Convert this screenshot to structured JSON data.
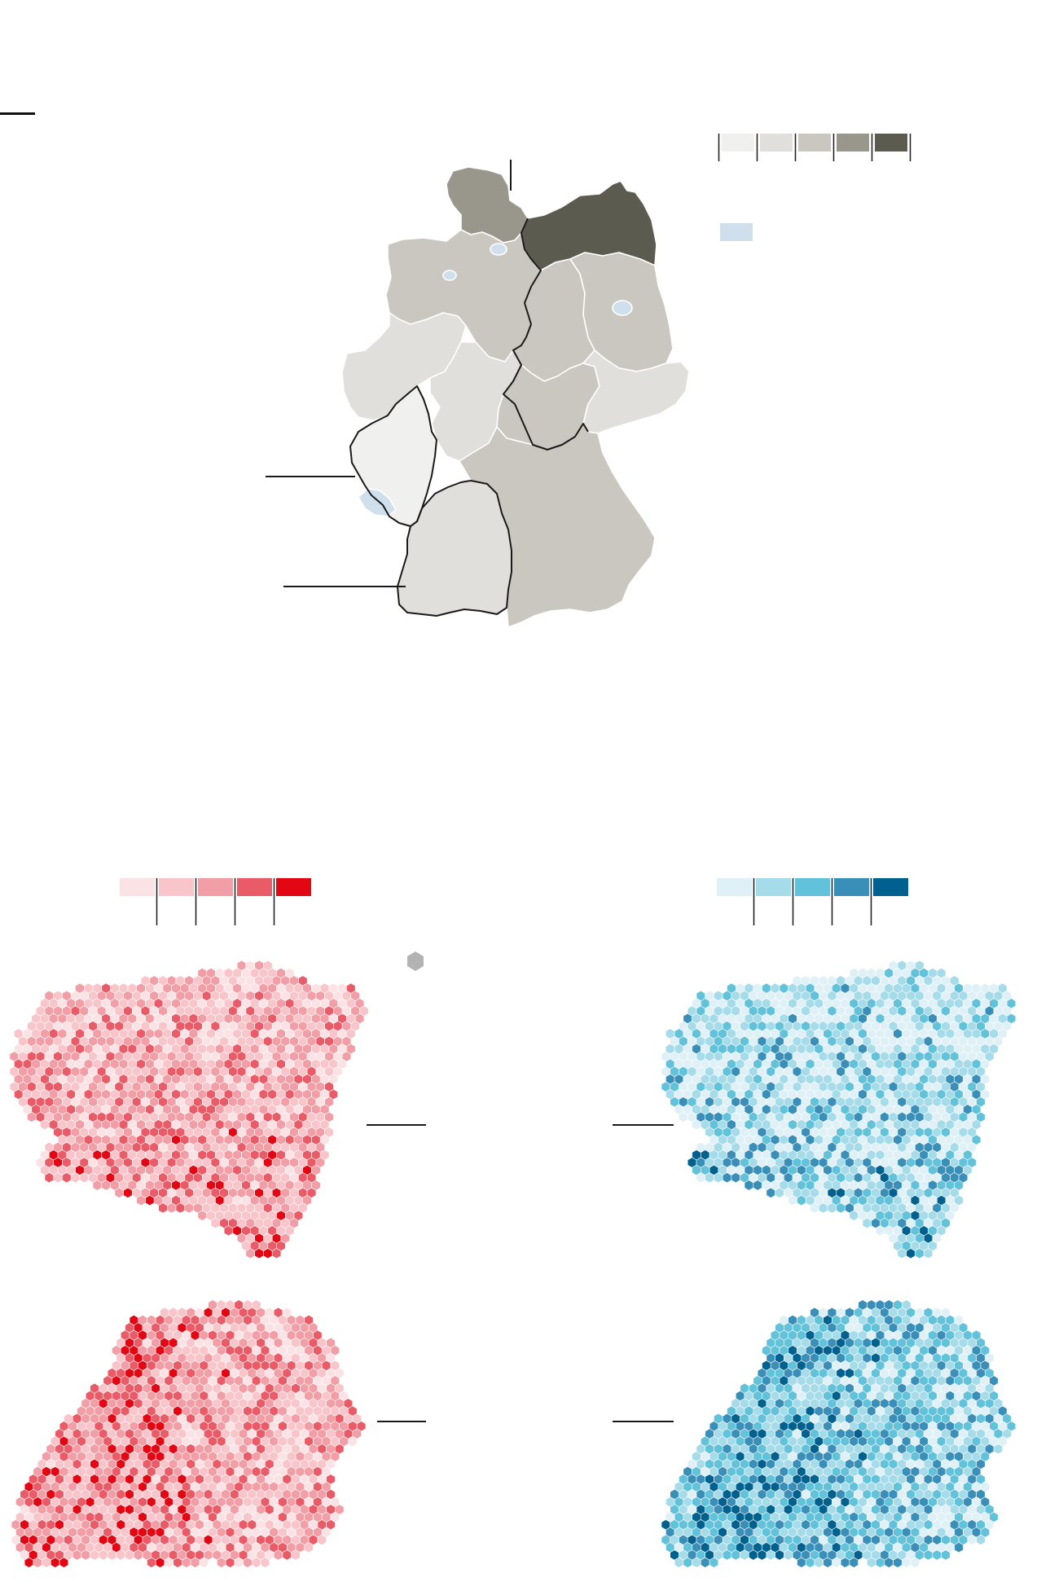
{
  "colors": {
    "background": "#ffffff",
    "state_borders": "#ffffff",
    "highlight_outline": "#1a1a1a",
    "city_state_fill": "#cfe0ec",
    "hex_marker": "#b3b3b3"
  },
  "germany_map": {
    "legend_scale": [
      "#f0f0ee",
      "#e0dfdb",
      "#c9c7c0",
      "#99978b",
      "#5c5b4f"
    ],
    "city_state_swatch": "#cfe0ec",
    "highlighted_states": [
      "rhineland-palatinate",
      "baden-wuerttemberg"
    ],
    "states": [
      {
        "id": "schleswig-holstein",
        "fill": "#99978b"
      },
      {
        "id": "mecklenburg-vorpommern",
        "fill": "#5c5b4f"
      },
      {
        "id": "lower-saxony",
        "fill": "#c9c7c0"
      },
      {
        "id": "saxony-anhalt",
        "fill": "#c9c7c0"
      },
      {
        "id": "brandenburg",
        "fill": "#c9c7c0"
      },
      {
        "id": "north-rhine-westphalia",
        "fill": "#e0dfdb"
      },
      {
        "id": "hesse",
        "fill": "#e0dfdb"
      },
      {
        "id": "thuringia",
        "fill": "#c9c7c0"
      },
      {
        "id": "saxony",
        "fill": "#e0dfdb"
      },
      {
        "id": "rhineland-palatinate",
        "fill": "#f0f0ee"
      },
      {
        "id": "saarland",
        "fill": "#cfe0ec"
      },
      {
        "id": "baden-wuerttemberg",
        "fill": "#e0dfdb"
      },
      {
        "id": "bavaria",
        "fill": "#c9c7c0"
      },
      {
        "id": "hamburg",
        "fill": "#cfe0ec"
      },
      {
        "id": "bremen",
        "fill": "#cfe0ec"
      },
      {
        "id": "berlin",
        "fill": "#cfe0ec"
      }
    ]
  },
  "hex_maps": {
    "red_scale": [
      "#fbe3e5",
      "#f8c5ca",
      "#f29ea6",
      "#ea5b68",
      "#e30613"
    ],
    "blue_scale": [
      "#dff1f6",
      "#a6dce9",
      "#62c2da",
      "#3a8fb9",
      "#00618f"
    ],
    "panels": [
      {
        "id": "rhineland-palatinate-red",
        "region": "rhineland-palatinate",
        "scale": "red",
        "weights": [
          0.22,
          0.24,
          0.24,
          0.18,
          0.12
        ]
      },
      {
        "id": "rhineland-palatinate-blue",
        "region": "rhineland-palatinate",
        "scale": "blue",
        "weights": [
          0.4,
          0.22,
          0.14,
          0.12,
          0.12
        ]
      },
      {
        "id": "baden-wuerttemberg-red",
        "region": "baden-wuerttemberg",
        "scale": "red",
        "weights": [
          0.2,
          0.22,
          0.22,
          0.2,
          0.16
        ]
      },
      {
        "id": "baden-wuerttemberg-blue",
        "region": "baden-wuerttemberg",
        "scale": "blue",
        "weights": [
          0.2,
          0.22,
          0.22,
          0.18,
          0.18
        ]
      }
    ]
  }
}
